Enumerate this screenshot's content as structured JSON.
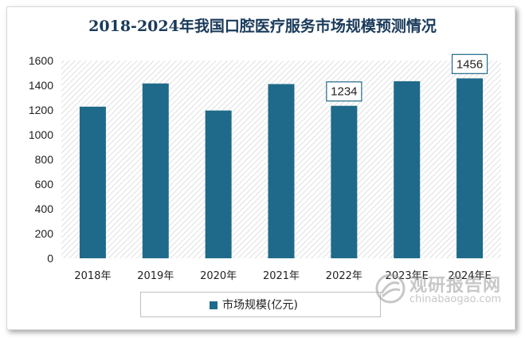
{
  "chart_data": {
    "type": "bar",
    "title": "2018-2024年我国口腔医疗服务市场规模预测情况",
    "categories": [
      "2018年",
      "2019年",
      "2020年",
      "2021年",
      "2022年",
      "2023年E",
      "2024年E"
    ],
    "series": [
      {
        "name": "市场规模(亿元)",
        "values": [
          1227,
          1415,
          1196,
          1410,
          1234,
          1433,
          1456
        ]
      }
    ],
    "data_labels": [
      {
        "category": "2022年",
        "text": "1234"
      },
      {
        "category": "2024年E",
        "text": "1456"
      }
    ],
    "ylim": [
      0,
      1600
    ],
    "yticks": [
      0,
      200,
      400,
      600,
      800,
      1000,
      1200,
      1400,
      1600
    ],
    "grid": false,
    "legend_position": "bottom",
    "bar_color": "#1f6a8a",
    "background": "hatched"
  },
  "watermark": {
    "brand": "观研报告网",
    "url": "chinabaogao.com"
  }
}
